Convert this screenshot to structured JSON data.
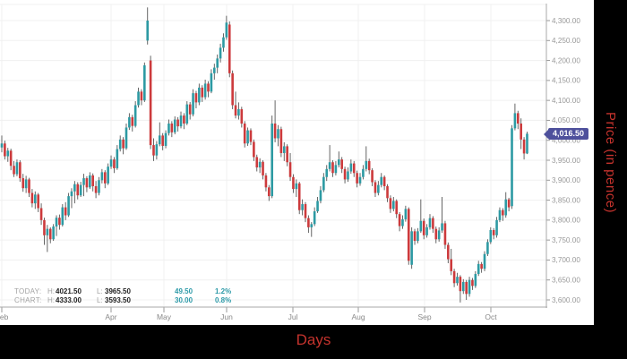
{
  "colors": {
    "background": "#000000",
    "panel": "#ffffff",
    "candle_up": "#2d9aa3",
    "candle_down": "#cc3a3c",
    "wick": "#555555",
    "grid": "#f0f0f0",
    "axis_line": "#aaaaaa",
    "tick_text": "#999999",
    "stats_label": "#a3a3a3",
    "stats_value": "#222222",
    "stats_teal": "#2d9aa8",
    "badge": "#4e509c",
    "axis_title_red": "#c5332d"
  },
  "y_axis": {
    "title": "Price (in pence)"
  },
  "x_axis": {
    "title": "Days"
  },
  "current_price": {
    "label": "4,016.50",
    "value": 4016.5
  },
  "stats": {
    "today": {
      "label": "TODAY:",
      "high_key": "H:",
      "high": "4021.50",
      "low_key": "L:",
      "low": "3965.50",
      "change": "49.50",
      "change_pct": "1.2%"
    },
    "chart": {
      "label": "CHART:",
      "high_key": "H:",
      "high": "4333.00",
      "low_key": "L:",
      "low": "3593.50",
      "change": "30.00",
      "change_pct": "0.8%"
    }
  },
  "chart_data": {
    "type": "candlestick",
    "title": "",
    "xlabel": "Days",
    "ylabel": "Price (in pence)",
    "ylim": [
      3600,
      4300
    ],
    "grid_step": 50,
    "legend": "none",
    "current_value": 4016.5,
    "chart_high": 4333.0,
    "chart_low": 3593.5,
    "price_tick_labels": [
      "4,300.00",
      "4,250.00",
      "4,200.00",
      "4,150.00",
      "4,100.00",
      "4,050.00",
      "4,000.00",
      "3,950.00",
      "3,900.00",
      "3,850.00",
      "3,800.00",
      "3,750.00",
      "3,700.00",
      "3,650.00",
      "3,600.00"
    ],
    "months": [
      {
        "label": "Feb",
        "x": 2
      },
      {
        "label": "Apr",
        "x": 124
      },
      {
        "label": "May",
        "x": 183
      },
      {
        "label": "Jun",
        "x": 253
      },
      {
        "label": "Jul",
        "x": 327
      },
      {
        "label": "Aug",
        "x": 400
      },
      {
        "label": "Sep",
        "x": 474
      },
      {
        "label": "Oct",
        "x": 548
      }
    ],
    "ohlc": [
      [
        3982,
        4012,
        3970,
        3992
      ],
      [
        3992,
        3999,
        3952,
        3960
      ],
      [
        3960,
        3981,
        3946,
        3974
      ],
      [
        3974,
        3979,
        3925,
        3936
      ],
      [
        3936,
        3948,
        3908,
        3915
      ],
      [
        3915,
        3952,
        3910,
        3945
      ],
      [
        3945,
        3950,
        3896,
        3905
      ],
      [
        3905,
        3916,
        3871,
        3880
      ],
      [
        3880,
        3911,
        3868,
        3902
      ],
      [
        3902,
        3906,
        3858,
        3868
      ],
      [
        3868,
        3878,
        3832,
        3842
      ],
      [
        3842,
        3872,
        3828,
        3864
      ],
      [
        3864,
        3868,
        3820,
        3830
      ],
      [
        3830,
        3842,
        3788,
        3800
      ],
      [
        3800,
        3806,
        3738,
        3762
      ],
      [
        3762,
        3788,
        3720,
        3778
      ],
      [
        3778,
        3782,
        3742,
        3752
      ],
      [
        3752,
        3790,
        3748,
        3784
      ],
      [
        3784,
        3812,
        3760,
        3806
      ],
      [
        3806,
        3814,
        3776,
        3788
      ],
      [
        3788,
        3840,
        3784,
        3832
      ],
      [
        3832,
        3845,
        3800,
        3812
      ],
      [
        3812,
        3868,
        3808,
        3860
      ],
      [
        3860,
        3880,
        3830,
        3872
      ],
      [
        3872,
        3898,
        3842,
        3890
      ],
      [
        3890,
        3895,
        3852,
        3862
      ],
      [
        3862,
        3896,
        3858,
        3888
      ],
      [
        3888,
        3916,
        3860,
        3905
      ],
      [
        3905,
        3910,
        3870,
        3882
      ],
      [
        3882,
        3920,
        3878,
        3912
      ],
      [
        3912,
        3917,
        3872,
        3885
      ],
      [
        3885,
        3898,
        3855,
        3868
      ],
      [
        3868,
        3908,
        3862,
        3900
      ],
      [
        3900,
        3928,
        3892,
        3920
      ],
      [
        3920,
        3925,
        3880,
        3892
      ],
      [
        3892,
        3942,
        3888,
        3934
      ],
      [
        3934,
        3962,
        3928,
        3952
      ],
      [
        3952,
        3958,
        3918,
        3930
      ],
      [
        3930,
        3988,
        3926,
        3978
      ],
      [
        3978,
        4012,
        3972,
        4002
      ],
      [
        4002,
        4008,
        3965,
        3980
      ],
      [
        3980,
        4042,
        3976,
        4032
      ],
      [
        4032,
        4068,
        4026,
        4058
      ],
      [
        4058,
        4064,
        4022,
        4036
      ],
      [
        4036,
        4098,
        4032,
        4088
      ],
      [
        4088,
        4132,
        4082,
        4122
      ],
      [
        4122,
        4128,
        4088,
        4100
      ],
      [
        4100,
        4195,
        4096,
        4188
      ],
      [
        4250,
        4333,
        4240,
        4300
      ],
      [
        4200,
        4212,
        3978,
        3988
      ],
      [
        3988,
        4005,
        3948,
        3962
      ],
      [
        3962,
        3998,
        3952,
        3990
      ],
      [
        3990,
        4045,
        3985,
        4012
      ],
      [
        4012,
        4018,
        3975,
        3986
      ],
      [
        3986,
        4025,
        3980,
        4018
      ],
      [
        4018,
        4052,
        4012,
        4042
      ],
      [
        4042,
        4048,
        4008,
        4020
      ],
      [
        4020,
        4060,
        4015,
        4052
      ],
      [
        4052,
        4058,
        4022,
        4035
      ],
      [
        4035,
        4072,
        4030,
        4062
      ],
      [
        4062,
        4068,
        4028,
        4042
      ],
      [
        4042,
        4098,
        4038,
        4090
      ],
      [
        4090,
        4096,
        4052,
        4065
      ],
      [
        4065,
        4128,
        4060,
        4118
      ],
      [
        4118,
        4124,
        4080,
        4095
      ],
      [
        4095,
        4142,
        4088,
        4132
      ],
      [
        4132,
        4138,
        4096,
        4108
      ],
      [
        4108,
        4152,
        4102,
        4142
      ],
      [
        4142,
        4148,
        4108,
        4122
      ],
      [
        4122,
        4178,
        4118,
        4168
      ],
      [
        4168,
        4192,
        4152,
        4182
      ],
      [
        4182,
        4215,
        4168,
        4205
      ],
      [
        4205,
        4242,
        4195,
        4232
      ],
      [
        4232,
        4268,
        4222,
        4258
      ],
      [
        4258,
        4312,
        4252,
        4295
      ],
      [
        4290,
        4298,
        4158,
        4168
      ],
      [
        4168,
        4175,
        4078,
        4088
      ],
      [
        4088,
        4122,
        4055,
        4062
      ],
      [
        4062,
        4095,
        4052,
        4078
      ],
      [
        4078,
        4084,
        4032,
        4042
      ],
      [
        4042,
        4048,
        3982,
        3992
      ],
      [
        3992,
        4032,
        3986,
        4025
      ],
      [
        4025,
        4030,
        3988,
        3996
      ],
      [
        3996,
        4002,
        3948,
        3958
      ],
      [
        3958,
        3964,
        3922,
        3932
      ],
      [
        3932,
        3955,
        3918,
        3946
      ],
      [
        3946,
        3950,
        3902,
        3912
      ],
      [
        3912,
        3918,
        3872,
        3882
      ],
      [
        3882,
        3888,
        3848,
        3860
      ],
      [
        3860,
        4062,
        3855,
        4042
      ],
      [
        4042,
        4100,
        3995,
        4005
      ],
      [
        4005,
        4038,
        3985,
        4028
      ],
      [
        4028,
        4034,
        3958,
        3968
      ],
      [
        3968,
        3995,
        3948,
        3985
      ],
      [
        3985,
        3990,
        3935,
        3945
      ],
      [
        3945,
        3968,
        3898,
        3908
      ],
      [
        3908,
        3915,
        3868,
        3878
      ],
      [
        3878,
        3902,
        3858,
        3892
      ],
      [
        3892,
        3896,
        3815,
        3825
      ],
      [
        3825,
        3852,
        3812,
        3840
      ],
      [
        3840,
        3845,
        3795,
        3805
      ],
      [
        3805,
        3812,
        3768,
        3782
      ],
      [
        3782,
        3795,
        3758,
        3790
      ],
      [
        3790,
        3832,
        3785,
        3822
      ],
      [
        3822,
        3858,
        3818,
        3848
      ],
      [
        3848,
        3885,
        3842,
        3875
      ],
      [
        3875,
        3918,
        3870,
        3908
      ],
      [
        3908,
        3938,
        3898,
        3928
      ],
      [
        3928,
        3988,
        3922,
        3945
      ],
      [
        3945,
        3950,
        3908,
        3918
      ],
      [
        3918,
        3948,
        3912,
        3938
      ],
      [
        3938,
        3972,
        3932,
        3952
      ],
      [
        3952,
        3958,
        3918,
        3928
      ],
      [
        3928,
        3934,
        3892,
        3902
      ],
      [
        3902,
        3932,
        3896,
        3922
      ],
      [
        3922,
        3952,
        3916,
        3942
      ],
      [
        3942,
        3948,
        3908,
        3918
      ],
      [
        3918,
        3924,
        3882,
        3892
      ],
      [
        3892,
        3918,
        3886,
        3908
      ],
      [
        3908,
        3938,
        3902,
        3928
      ],
      [
        3928,
        3985,
        3922,
        3948
      ],
      [
        3948,
        3954,
        3915,
        3925
      ],
      [
        3925,
        3930,
        3885,
        3895
      ],
      [
        3895,
        3900,
        3858,
        3868
      ],
      [
        3868,
        3898,
        3862,
        3888
      ],
      [
        3888,
        3918,
        3882,
        3908
      ],
      [
        3908,
        3912,
        3875,
        3885
      ],
      [
        3885,
        3890,
        3845,
        3855
      ],
      [
        3855,
        3862,
        3818,
        3828
      ],
      [
        3828,
        3858,
        3822,
        3848
      ],
      [
        3848,
        3852,
        3805,
        3815
      ],
      [
        3815,
        3820,
        3772,
        3785
      ],
      [
        3785,
        3812,
        3778,
        3802
      ],
      [
        3802,
        3836,
        3796,
        3828
      ],
      [
        3828,
        3832,
        3688,
        3698
      ],
      [
        3688,
        3782,
        3678,
        3772
      ],
      [
        3772,
        3778,
        3738,
        3748
      ],
      [
        3748,
        3780,
        3742,
        3772
      ],
      [
        3772,
        3852,
        3768,
        3798
      ],
      [
        3798,
        3804,
        3752,
        3762
      ],
      [
        3762,
        3790,
        3756,
        3782
      ],
      [
        3782,
        3815,
        3776,
        3805
      ],
      [
        3805,
        3810,
        3768,
        3778
      ],
      [
        3778,
        3784,
        3742,
        3752
      ],
      [
        3752,
        3782,
        3746,
        3774
      ],
      [
        3774,
        3858,
        3768,
        3792
      ],
      [
        3792,
        3798,
        3728,
        3738
      ],
      [
        3738,
        3744,
        3692,
        3702
      ],
      [
        3702,
        3728,
        3662,
        3672
      ],
      [
        3672,
        3678,
        3632,
        3642
      ],
      [
        3642,
        3668,
        3636,
        3658
      ],
      [
        3658,
        3662,
        3593.5,
        3622
      ],
      [
        3622,
        3652,
        3615,
        3645
      ],
      [
        3645,
        3650,
        3600,
        3615
      ],
      [
        3615,
        3658,
        3608,
        3650
      ],
      [
        3650,
        3655,
        3625,
        3635
      ],
      [
        3635,
        3672,
        3630,
        3665
      ],
      [
        3665,
        3698,
        3660,
        3690
      ],
      [
        3690,
        3695,
        3668,
        3678
      ],
      [
        3678,
        3722,
        3672,
        3715
      ],
      [
        3715,
        3752,
        3710,
        3745
      ],
      [
        3745,
        3782,
        3740,
        3775
      ],
      [
        3775,
        3780,
        3752,
        3762
      ],
      [
        3762,
        3808,
        3756,
        3800
      ],
      [
        3800,
        3832,
        3795,
        3825
      ],
      [
        3825,
        3830,
        3798,
        3812
      ],
      [
        3812,
        3870,
        3806,
        3852
      ],
      [
        3852,
        3856,
        3822,
        3832
      ],
      [
        3835,
        4038,
        3828,
        4030
      ],
      [
        4030,
        4092,
        4025,
        4068
      ],
      [
        4068,
        4074,
        4028,
        4042
      ],
      [
        4042,
        4055,
        3978,
        4002
      ],
      [
        4002,
        4008,
        3952,
        3967
      ],
      [
        3967,
        4021.5,
        3965.5,
        4016.5
      ]
    ]
  }
}
